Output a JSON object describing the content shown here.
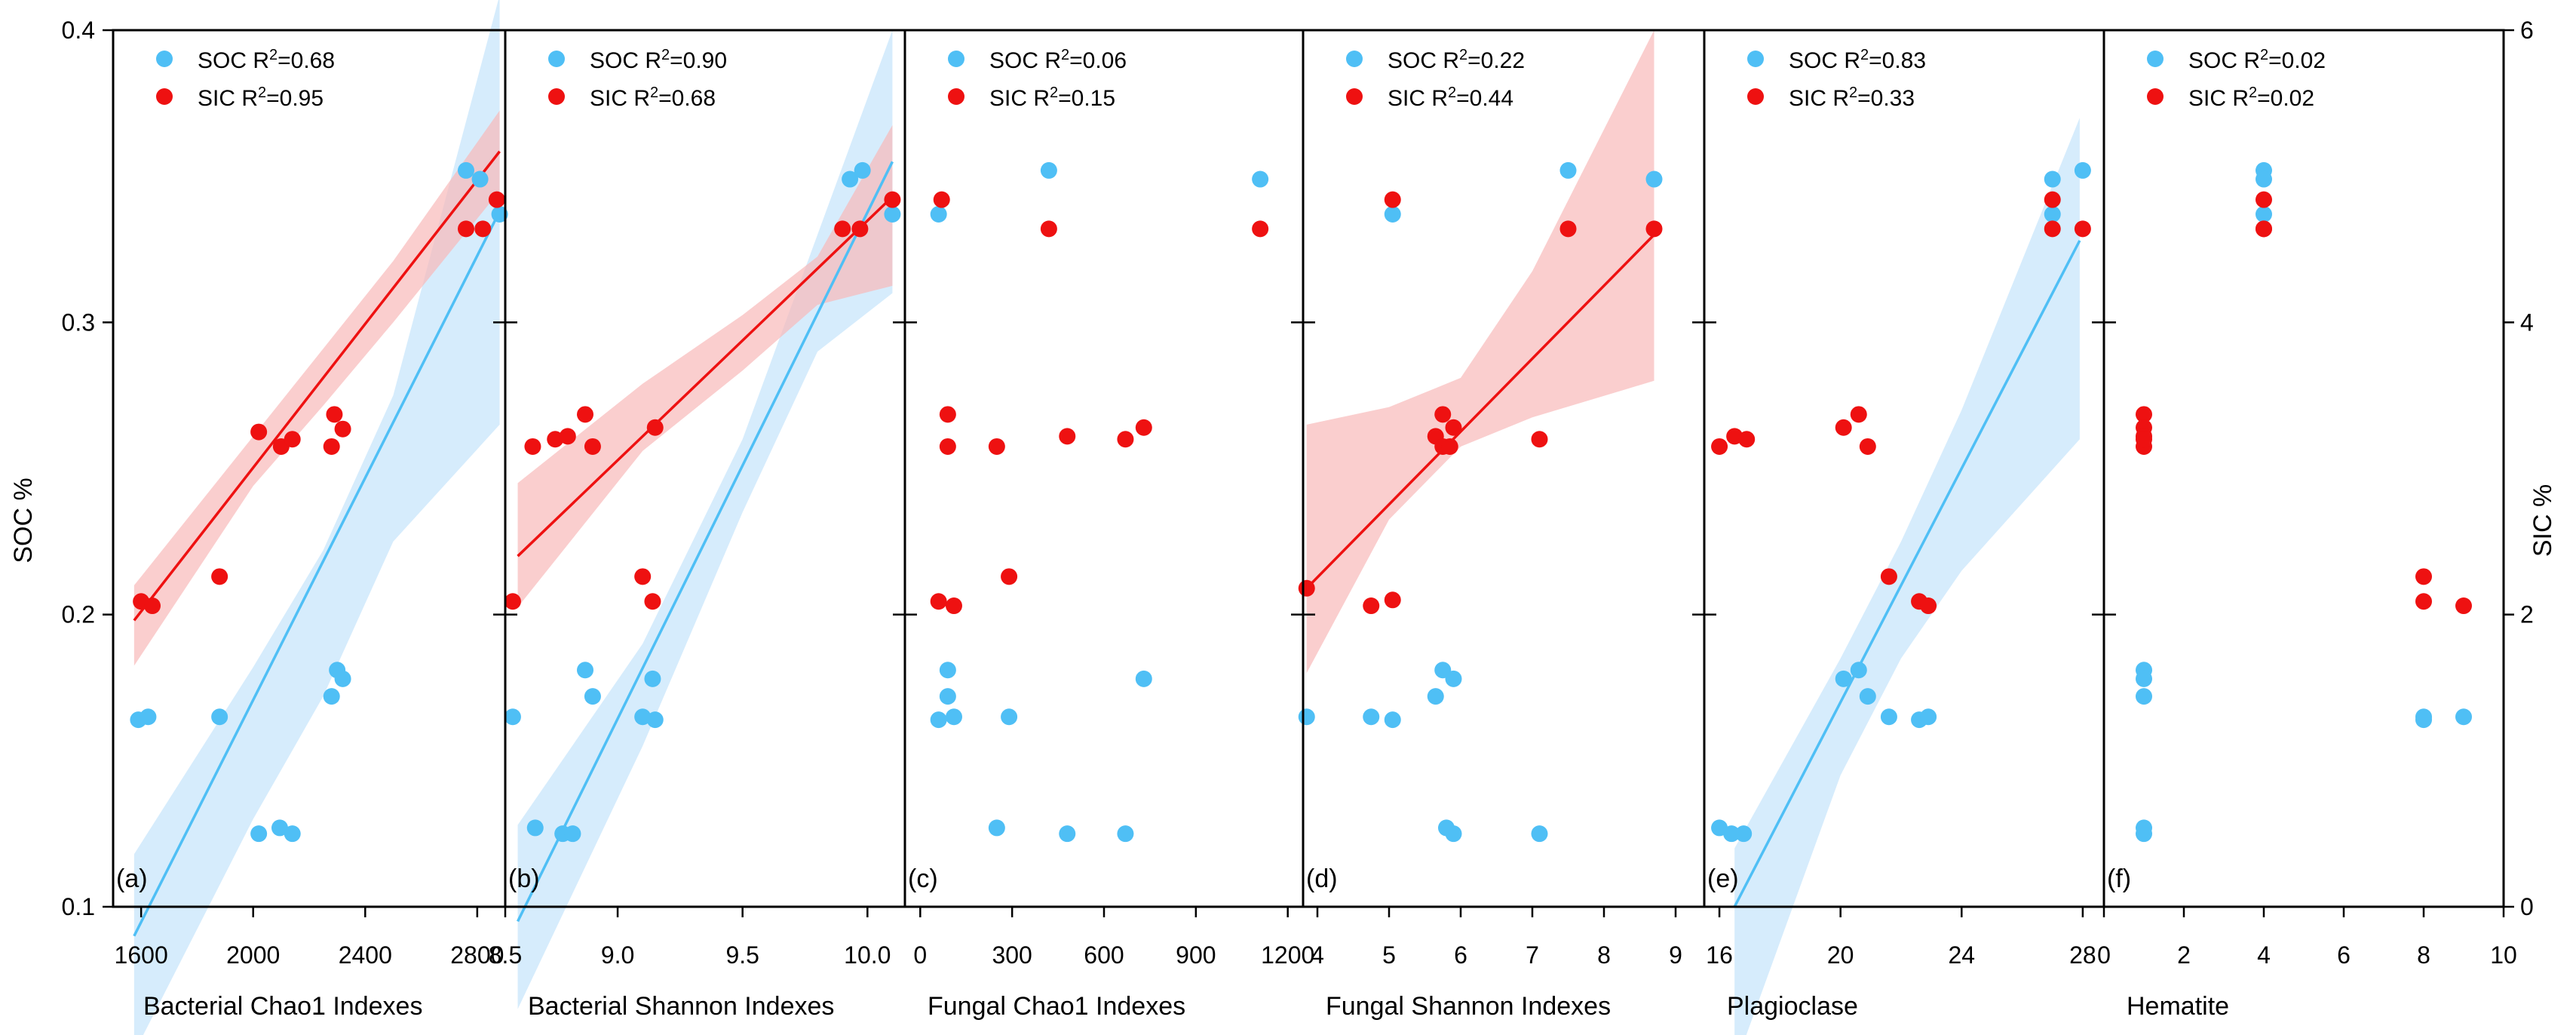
{
  "colors": {
    "soc": "#4fbff5",
    "sic": "#ee1111",
    "soc_band": "#cfe9fb",
    "sic_band": "#f8b9b9"
  },
  "left_axis": {
    "label": "SOC %",
    "ylim": [
      0.1,
      0.4
    ],
    "ticks": [
      "0.1",
      "0.2",
      "0.3",
      "0.4"
    ]
  },
  "right_axis": {
    "label": "SIC %",
    "ylim": [
      0,
      6
    ],
    "ticks": [
      "0",
      "2",
      "4",
      "6"
    ]
  },
  "chart_data": [
    {
      "type": "scatter",
      "panel": "(a)",
      "xlabel": "Bacterial Chao1 Indexes",
      "xlim": [
        1500,
        2900
      ],
      "xticks": [
        {
          "v": 1600,
          "t": "1600"
        },
        {
          "v": 2000,
          "t": "2000"
        },
        {
          "v": 2400,
          "t": "2400"
        },
        {
          "v": 2800,
          "t": "2800"
        }
      ],
      "legend": [
        {
          "series": "SOC",
          "prefix": "SOC R",
          "suffix": "=0.68"
        },
        {
          "series": "SIC",
          "prefix": "SIC R",
          "suffix": "=0.95"
        }
      ],
      "soc": {
        "points": [
          [
            1590,
            0.164
          ],
          [
            1625,
            0.165
          ],
          [
            1880,
            0.165
          ],
          [
            2020,
            0.125
          ],
          [
            2095,
            0.127
          ],
          [
            2140,
            0.125
          ],
          [
            2280,
            0.172
          ],
          [
            2300,
            0.181
          ],
          [
            2320,
            0.178
          ],
          [
            2760,
            0.352
          ],
          [
            2810,
            0.349
          ],
          [
            2880,
            0.337
          ]
        ],
        "fit": [
          1575,
          0.09,
          2880,
          0.338
        ],
        "band_low": [
          [
            1575,
            0.05
          ],
          [
            2000,
            0.13
          ],
          [
            2250,
            0.172
          ],
          [
            2500,
            0.225
          ],
          [
            2880,
            0.265
          ]
        ],
        "band_high": [
          [
            1575,
            0.118
          ],
          [
            2000,
            0.182
          ],
          [
            2250,
            0.222
          ],
          [
            2500,
            0.275
          ],
          [
            2880,
            0.412
          ]
        ]
      },
      "sic": {
        "points": [
          [
            1600,
            2.09
          ],
          [
            1640,
            2.06
          ],
          [
            1880,
            2.26
          ],
          [
            2020,
            3.25
          ],
          [
            2100,
            3.15
          ],
          [
            2140,
            3.2
          ],
          [
            2280,
            3.15
          ],
          [
            2290,
            3.37
          ],
          [
            2320,
            3.27
          ],
          [
            2760,
            4.64
          ],
          [
            2820,
            4.64
          ],
          [
            2870,
            4.84
          ]
        ],
        "fit": [
          1575,
          1.96,
          2880,
          5.17
        ],
        "band_low": [
          [
            1575,
            1.65
          ],
          [
            2000,
            2.88
          ],
          [
            2250,
            3.43
          ],
          [
            2500,
            4.0
          ],
          [
            2880,
            4.9
          ]
        ],
        "band_high": [
          [
            1575,
            2.2
          ],
          [
            2000,
            3.22
          ],
          [
            2250,
            3.82
          ],
          [
            2500,
            4.42
          ],
          [
            2880,
            5.45
          ]
        ]
      }
    },
    {
      "type": "scatter",
      "panel": "(b)",
      "xlabel": "Bacterial Shannon Indexes",
      "xlim": [
        8.55,
        10.15
      ],
      "xticks": [
        {
          "v": 8.55,
          "t": "8.5"
        },
        {
          "v": 9.0,
          "t": "9.0"
        },
        {
          "v": 9.5,
          "t": "9.5"
        },
        {
          "v": 10.0,
          "t": "10.0"
        }
      ],
      "legend": [
        {
          "series": "SOC",
          "prefix": "SOC R",
          "suffix": "=0.90"
        },
        {
          "series": "SIC",
          "prefix": "SIC R",
          "suffix": "=0.68"
        }
      ],
      "soc": {
        "points": [
          [
            8.58,
            0.165
          ],
          [
            8.67,
            0.127
          ],
          [
            8.78,
            0.125
          ],
          [
            8.82,
            0.125
          ],
          [
            8.87,
            0.181
          ],
          [
            8.9,
            0.172
          ],
          [
            9.1,
            0.165
          ],
          [
            9.14,
            0.178
          ],
          [
            9.15,
            0.164
          ],
          [
            9.93,
            0.349
          ],
          [
            9.98,
            0.352
          ],
          [
            10.1,
            0.337
          ]
        ],
        "fit": [
          8.6,
          0.095,
          10.1,
          0.355
        ],
        "band_low": [
          [
            8.6,
            0.065
          ],
          [
            9.1,
            0.155
          ],
          [
            9.5,
            0.235
          ],
          [
            9.8,
            0.29
          ],
          [
            10.1,
            0.31
          ]
        ],
        "band_high": [
          [
            8.6,
            0.128
          ],
          [
            9.1,
            0.19
          ],
          [
            9.5,
            0.26
          ],
          [
            9.8,
            0.33
          ],
          [
            10.1,
            0.4
          ]
        ]
      },
      "sic": {
        "points": [
          [
            8.58,
            2.09
          ],
          [
            8.66,
            3.15
          ],
          [
            8.75,
            3.2
          ],
          [
            8.8,
            3.22
          ],
          [
            8.87,
            3.37
          ],
          [
            8.9,
            3.15
          ],
          [
            9.1,
            2.26
          ],
          [
            9.14,
            2.09
          ],
          [
            9.15,
            3.28
          ],
          [
            9.9,
            4.64
          ],
          [
            9.97,
            4.64
          ],
          [
            10.1,
            4.84
          ]
        ],
        "fit": [
          8.6,
          2.4,
          10.1,
          4.86
        ],
        "band_low": [
          [
            8.6,
            2.05
          ],
          [
            9.1,
            3.12
          ],
          [
            9.5,
            3.67
          ],
          [
            9.8,
            4.12
          ],
          [
            10.1,
            4.25
          ]
        ],
        "band_high": [
          [
            8.6,
            2.9
          ],
          [
            9.1,
            3.58
          ],
          [
            9.5,
            4.05
          ],
          [
            9.8,
            4.45
          ],
          [
            10.1,
            5.35
          ]
        ]
      }
    },
    {
      "type": "scatter",
      "panel": "(c)",
      "xlabel": "Fungal Chao1 Indexes",
      "xlim": [
        -50,
        1250
      ],
      "xticks": [
        {
          "v": 0,
          "t": "0"
        },
        {
          "v": 300,
          "t": "300"
        },
        {
          "v": 600,
          "t": "600"
        },
        {
          "v": 900,
          "t": "900"
        },
        {
          "v": 1200,
          "t": "1200"
        }
      ],
      "legend": [
        {
          "series": "SOC",
          "prefix": "SOC R",
          "suffix": "=0.06"
        },
        {
          "series": "SIC",
          "prefix": "SIC R",
          "suffix": "=0.15"
        }
      ],
      "soc": {
        "points": [
          [
            60,
            0.337
          ],
          [
            420,
            0.352
          ],
          [
            1110,
            0.349
          ],
          [
            60,
            0.164
          ],
          [
            90,
            0.181
          ],
          [
            90,
            0.172
          ],
          [
            110,
            0.165
          ],
          [
            290,
            0.165
          ],
          [
            250,
            0.127
          ],
          [
            480,
            0.125
          ],
          [
            670,
            0.125
          ],
          [
            730,
            0.178
          ]
        ]
      },
      "sic": {
        "points": [
          [
            70,
            4.84
          ],
          [
            420,
            4.64
          ],
          [
            1110,
            4.64
          ],
          [
            90,
            3.37
          ],
          [
            90,
            3.15
          ],
          [
            250,
            3.15
          ],
          [
            480,
            3.22
          ],
          [
            670,
            3.2
          ],
          [
            730,
            3.28
          ],
          [
            60,
            2.09
          ],
          [
            110,
            2.06
          ],
          [
            290,
            2.26
          ]
        ]
      }
    },
    {
      "type": "scatter",
      "panel": "(d)",
      "xlabel": "Fungal Shannon Indexes",
      "xlim": [
        3.8,
        9.4
      ],
      "xticks": [
        {
          "v": 4,
          "t": "4"
        },
        {
          "v": 5,
          "t": "5"
        },
        {
          "v": 6,
          "t": "6"
        },
        {
          "v": 7,
          "t": "7"
        },
        {
          "v": 8,
          "t": "8"
        },
        {
          "v": 9,
          "t": "9"
        }
      ],
      "legend": [
        {
          "series": "SOC",
          "prefix": "SOC R",
          "suffix": "=0.22"
        },
        {
          "series": "SIC",
          "prefix": "SIC R",
          "suffix": "=0.44"
        }
      ],
      "soc": {
        "points": [
          [
            3.85,
            0.165
          ],
          [
            4.75,
            0.165
          ],
          [
            5.05,
            0.164
          ],
          [
            5.05,
            0.337
          ],
          [
            5.65,
            0.172
          ],
          [
            5.75,
            0.181
          ],
          [
            5.8,
            0.127
          ],
          [
            5.9,
            0.125
          ],
          [
            5.9,
            0.178
          ],
          [
            7.1,
            0.125
          ],
          [
            7.5,
            0.352
          ],
          [
            8.7,
            0.349
          ]
        ]
      },
      "sic": {
        "points": [
          [
            3.85,
            2.18
          ],
          [
            4.75,
            2.06
          ],
          [
            5.05,
            2.1
          ],
          [
            5.05,
            4.84
          ],
          [
            5.65,
            3.22
          ],
          [
            5.75,
            3.37
          ],
          [
            5.75,
            3.15
          ],
          [
            5.85,
            3.15
          ],
          [
            5.9,
            3.28
          ],
          [
            7.1,
            3.2
          ],
          [
            7.5,
            4.64
          ],
          [
            8.7,
            4.64
          ]
        ],
        "fit": [
          3.85,
          2.18,
          8.7,
          4.6
        ],
        "band_low": [
          [
            3.85,
            1.6
          ],
          [
            5.0,
            2.65
          ],
          [
            6.0,
            3.15
          ],
          [
            7.0,
            3.35
          ],
          [
            8.7,
            3.6
          ]
        ],
        "band_high": [
          [
            3.85,
            3.3
          ],
          [
            5.0,
            3.42
          ],
          [
            6.0,
            3.62
          ],
          [
            7.0,
            4.35
          ],
          [
            8.7,
            6.0
          ]
        ]
      }
    },
    {
      "type": "scatter",
      "panel": "(e)",
      "xlabel": "Plagioclase",
      "xlim": [
        15.5,
        28.7
      ],
      "xticks": [
        {
          "v": 16,
          "t": "16"
        },
        {
          "v": 20,
          "t": "20"
        },
        {
          "v": 24,
          "t": "24"
        },
        {
          "v": 28,
          "t": "28"
        }
      ],
      "legend": [
        {
          "series": "SOC",
          "prefix": "SOC R",
          "suffix": "=0.83"
        },
        {
          "series": "SIC",
          "prefix": "SIC R",
          "suffix": "=0.33"
        }
      ],
      "soc": {
        "points": [
          [
            16.0,
            0.127
          ],
          [
            16.4,
            0.125
          ],
          [
            16.8,
            0.125
          ],
          [
            20.1,
            0.178
          ],
          [
            20.6,
            0.181
          ],
          [
            20.9,
            0.172
          ],
          [
            21.6,
            0.165
          ],
          [
            22.6,
            0.164
          ],
          [
            22.9,
            0.165
          ],
          [
            27.0,
            0.337
          ],
          [
            27.0,
            0.349
          ],
          [
            28.0,
            0.352
          ]
        ],
        "fit": [
          16.5,
          0.1,
          27.9,
          0.328
        ],
        "band_low": [
          [
            16.5,
            0.045
          ],
          [
            20,
            0.145
          ],
          [
            22,
            0.185
          ],
          [
            24,
            0.215
          ],
          [
            27.9,
            0.26
          ]
        ],
        "band_high": [
          [
            16.5,
            0.12
          ],
          [
            20,
            0.185
          ],
          [
            22,
            0.225
          ],
          [
            24,
            0.27
          ],
          [
            27.9,
            0.37
          ]
        ]
      },
      "sic": {
        "points": [
          [
            16.0,
            3.15
          ],
          [
            16.5,
            3.22
          ],
          [
            16.9,
            3.2
          ],
          [
            20.1,
            3.28
          ],
          [
            20.6,
            3.37
          ],
          [
            20.9,
            3.15
          ],
          [
            21.6,
            2.26
          ],
          [
            22.6,
            2.09
          ],
          [
            22.9,
            2.06
          ],
          [
            27.0,
            4.84
          ],
          [
            27.0,
            4.64
          ],
          [
            28.0,
            4.64
          ]
        ]
      }
    },
    {
      "type": "scatter",
      "panel": "(f)",
      "xlabel": "Hematite",
      "xlim": [
        0,
        10
      ],
      "xticks": [
        {
          "v": 0,
          "t": "0"
        },
        {
          "v": 2,
          "t": "2"
        },
        {
          "v": 4,
          "t": "4"
        },
        {
          "v": 6,
          "t": "6"
        },
        {
          "v": 8,
          "t": "8"
        },
        {
          "v": 10,
          "t": "10"
        }
      ],
      "legend": [
        {
          "series": "SOC",
          "prefix": "SOC R",
          "suffix": "=0.02"
        },
        {
          "series": "SIC",
          "prefix": "SIC R",
          "suffix": "=0.02"
        }
      ],
      "soc": {
        "points": [
          [
            1,
            0.181
          ],
          [
            1,
            0.178
          ],
          [
            1,
            0.172
          ],
          [
            1,
            0.127
          ],
          [
            1,
            0.125
          ],
          [
            4,
            0.352
          ],
          [
            4,
            0.349
          ],
          [
            4,
            0.337
          ],
          [
            8,
            0.165
          ],
          [
            8,
            0.164
          ],
          [
            9,
            0.165
          ]
        ]
      },
      "sic": {
        "points": [
          [
            1,
            3.37
          ],
          [
            1,
            3.28
          ],
          [
            1,
            3.22
          ],
          [
            1,
            3.15
          ],
          [
            1,
            3.2
          ],
          [
            4,
            4.84
          ],
          [
            4,
            4.64
          ],
          [
            4,
            4.64
          ],
          [
            8,
            2.26
          ],
          [
            8,
            2.09
          ],
          [
            9,
            2.06
          ]
        ]
      }
    }
  ]
}
